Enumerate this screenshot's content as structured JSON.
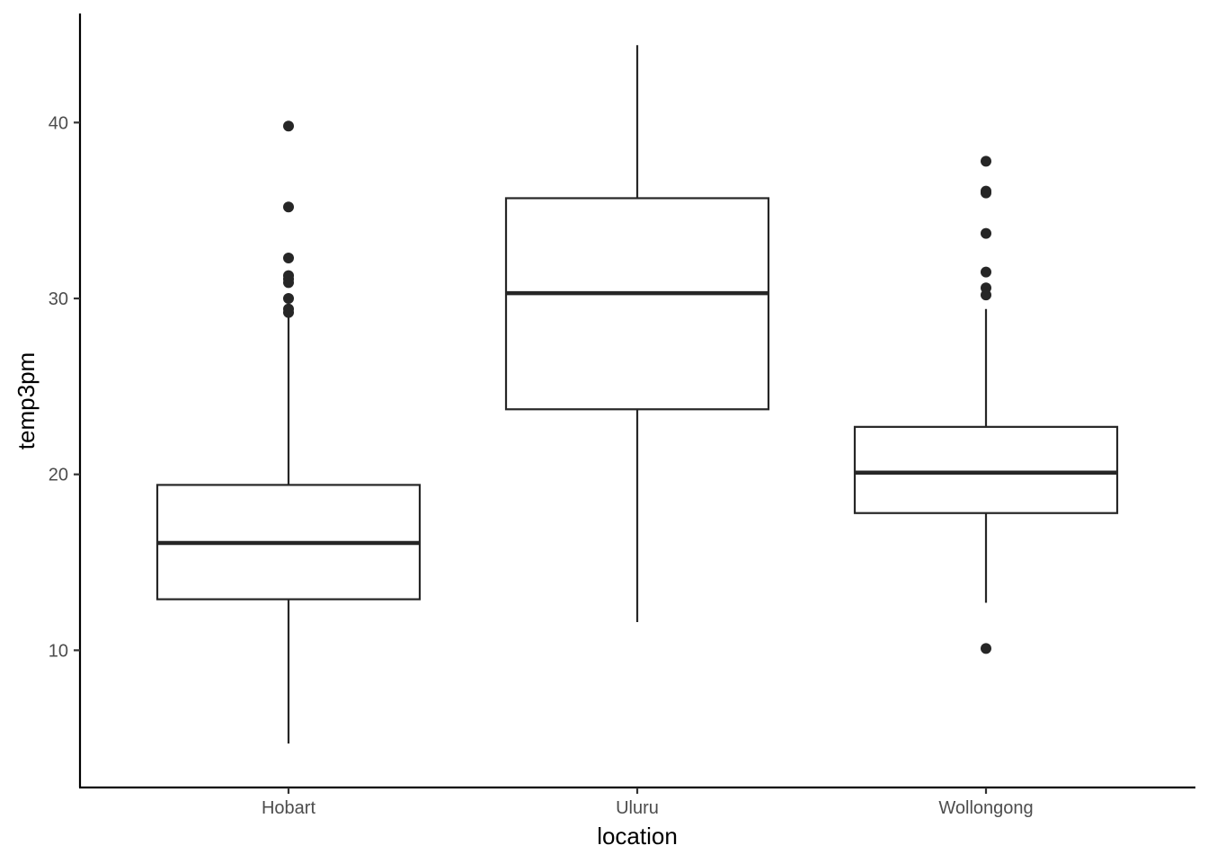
{
  "chart_data": {
    "type": "boxplot",
    "xlabel": "location",
    "ylabel": "temp3pm",
    "categories": [
      "Hobart",
      "Uluru",
      "Wollongong"
    ],
    "yticks": [
      10,
      20,
      30,
      40
    ],
    "ylim": [
      2.2,
      46.2
    ],
    "grid": false,
    "legend": "none",
    "colors": {
      "stroke": "#262626",
      "axis": "#000000",
      "tick_text": "#4d4d4d",
      "background": "#ffffff"
    },
    "boxes": [
      {
        "category": "Hobart",
        "whisker_low": 4.7,
        "q1": 12.9,
        "median": 16.1,
        "q3": 19.4,
        "whisker_high": 29.1,
        "outliers": [
          29.2,
          29.4,
          30.0,
          30.9,
          31.1,
          31.3,
          32.3,
          35.2,
          39.8
        ]
      },
      {
        "category": "Uluru",
        "whisker_low": 11.6,
        "q1": 23.7,
        "median": 30.3,
        "q3": 35.7,
        "whisker_high": 44.4,
        "outliers": []
      },
      {
        "category": "Wollongong",
        "whisker_low": 12.7,
        "q1": 17.8,
        "median": 20.1,
        "q3": 22.7,
        "whisker_high": 29.4,
        "outliers": [
          10.1,
          30.2,
          30.6,
          31.5,
          33.7,
          36.0,
          36.1,
          37.8
        ]
      }
    ]
  }
}
